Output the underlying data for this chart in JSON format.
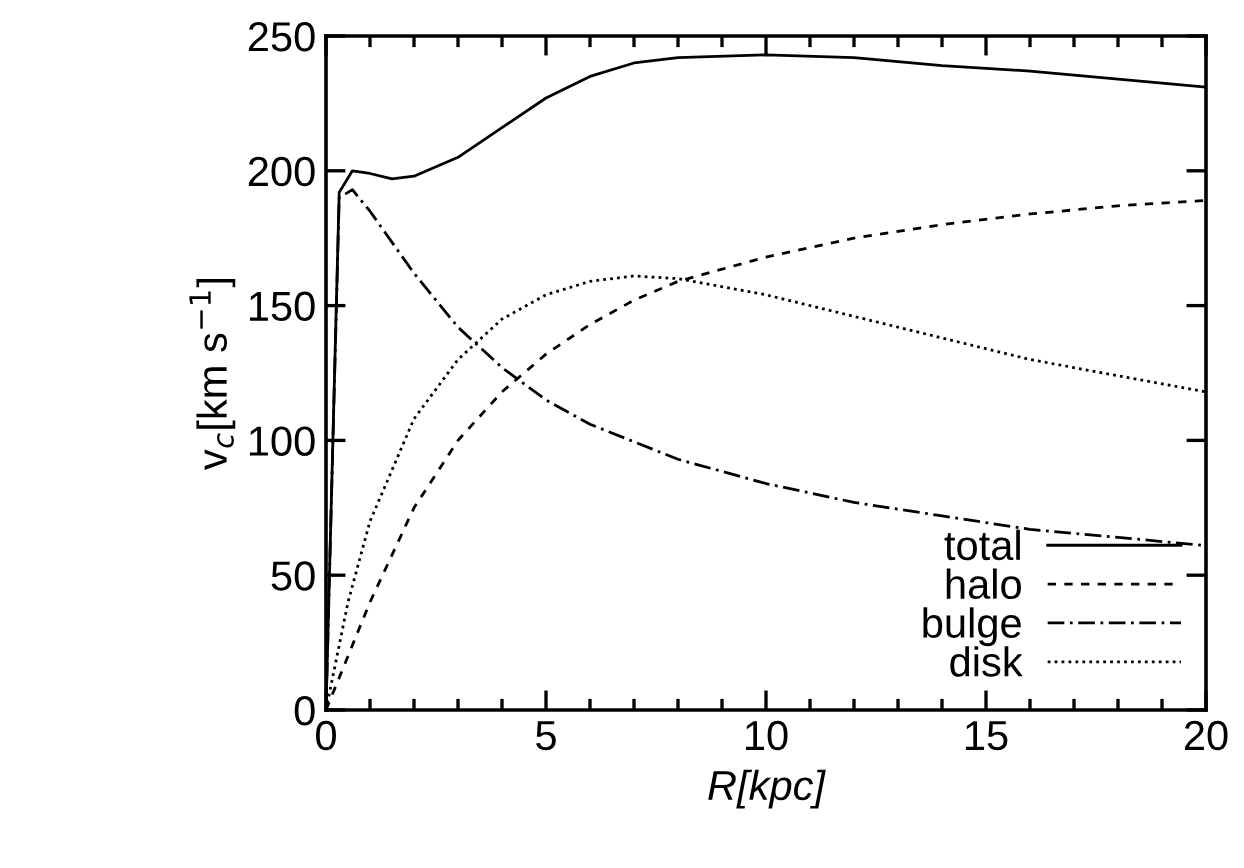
{
  "chart_data": {
    "type": "line",
    "xlabel": "R[kpc]",
    "ylabel": "v$_{c}$[km s$^{−1}$]",
    "xlim": [
      0,
      20
    ],
    "ylim": [
      0,
      250
    ],
    "xticks": [
      0,
      5,
      10,
      15,
      20
    ],
    "yticks": [
      0,
      50,
      100,
      150,
      200,
      250
    ],
    "grid": false,
    "legend": "bottom right",
    "marker": "none",
    "series": [
      {
        "name": "total",
        "color": "#000000",
        "line_style": "solid",
        "x": [
          0,
          0.3,
          0.6,
          1,
          1.5,
          2,
          3,
          4,
          5,
          6,
          7,
          8,
          10,
          12,
          14,
          16,
          18,
          20
        ],
        "values": [
          0,
          192,
          200,
          199,
          197,
          198,
          205,
          216,
          227,
          235,
          240,
          242,
          243,
          242,
          239,
          237,
          234,
          231
        ]
      },
      {
        "name": "halo",
        "color": "#000000",
        "line_style": "dashed",
        "x": [
          0,
          1,
          2,
          3,
          4,
          5,
          6,
          7,
          8,
          10,
          12,
          14,
          16,
          18,
          20
        ],
        "values": [
          0,
          40,
          75,
          100,
          118,
          132,
          143,
          152,
          159,
          168,
          175,
          180,
          184,
          187,
          189
        ]
      },
      {
        "name": "bulge",
        "color": "#000000",
        "line_style": "dashdot",
        "x": [
          0,
          0.3,
          0.6,
          1,
          2,
          3,
          4,
          5,
          6,
          8,
          10,
          12,
          14,
          16,
          18,
          20
        ],
        "values": [
          0,
          190,
          193,
          185,
          162,
          142,
          127,
          115,
          106,
          93,
          84,
          77,
          72,
          67,
          64,
          61
        ]
      },
      {
        "name": "disk",
        "color": "#000000",
        "line_style": "dotted",
        "x": [
          0,
          0.5,
          1,
          2,
          3,
          4,
          5,
          6,
          7,
          8,
          10,
          12,
          14,
          16,
          18,
          20
        ],
        "values": [
          0,
          40,
          70,
          108,
          130,
          145,
          154,
          159,
          161,
          160,
          154,
          146,
          138,
          130,
          124,
          118
        ]
      }
    ]
  }
}
